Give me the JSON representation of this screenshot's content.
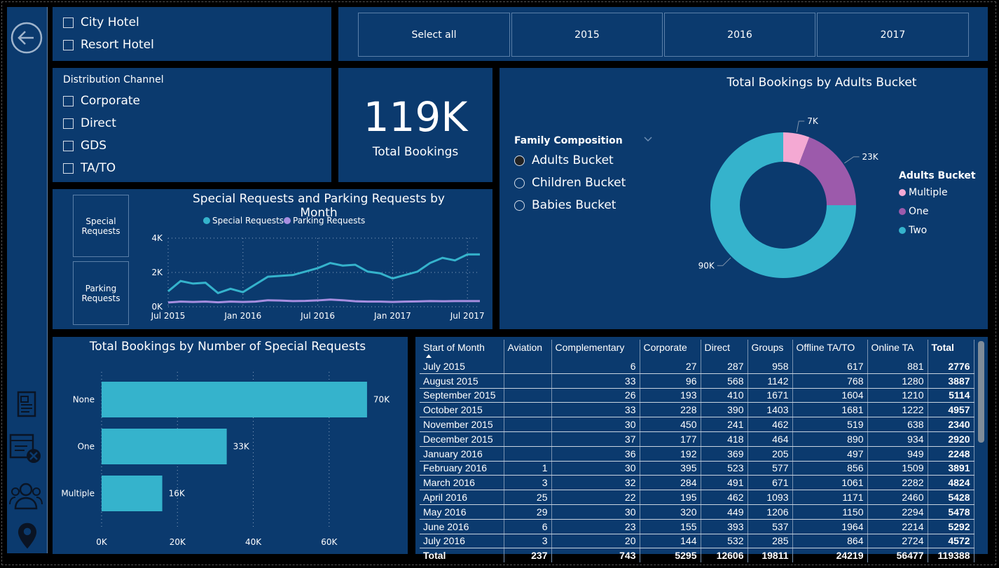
{
  "sidebar": {
    "icons": [
      "back-arrow-icon",
      "report-icon",
      "cancel-booking-icon",
      "customers-icon",
      "location-pin-icon"
    ]
  },
  "hotel_slicer": {
    "options": [
      "City Hotel",
      "Resort Hotel"
    ]
  },
  "year_slicer": {
    "options": [
      "Select all",
      "2015",
      "2016",
      "2017"
    ]
  },
  "channel_slicer": {
    "title": "Distribution Channel",
    "options": [
      "Corporate",
      "Direct",
      "GDS",
      "TA/TO"
    ]
  },
  "kpi": {
    "value": "119K",
    "label": "Total Bookings"
  },
  "family": {
    "title": "Family Composition",
    "options": [
      "Adults Bucket",
      "Children Bucket",
      "Babies Bucket"
    ],
    "selected": "Adults Bucket"
  },
  "line_buttons": [
    "Special Requests",
    "Parking Requests"
  ],
  "colors": {
    "teal": "#35b3cc",
    "purple": "#a78ee0",
    "pink": "#f4a9d3",
    "violet": "#9c5aab",
    "panel": "#0b3a6e"
  },
  "chart_data": [
    {
      "type": "line",
      "title": "Special Requests and Parking Requests by Month",
      "x": [
        "Jul 2015",
        "Aug 2015",
        "Sep 2015",
        "Oct 2015",
        "Nov 2015",
        "Dec 2015",
        "Jan 2016",
        "Feb 2016",
        "Mar 2016",
        "Apr 2016",
        "May 2016",
        "Jun 2016",
        "Jul 2016",
        "Aug 2016",
        "Sep 2016",
        "Oct 2016",
        "Nov 2016",
        "Dec 2016",
        "Jan 2017",
        "Feb 2017",
        "Mar 2017",
        "Apr 2017",
        "May 2017",
        "Jun 2017",
        "Jul 2017",
        "Aug 2017"
      ],
      "xticks": [
        "Jul 2015",
        "Jan 2016",
        "Jul 2016",
        "Jan 2017",
        "Jul 2017"
      ],
      "series": [
        {
          "name": "Special Requests",
          "color": "#35b3cc",
          "values": [
            900,
            1500,
            1350,
            1400,
            800,
            1050,
            850,
            1300,
            1750,
            1800,
            1850,
            2050,
            2250,
            2550,
            2400,
            2450,
            2050,
            1950,
            1650,
            1850,
            2050,
            2550,
            2850,
            2700,
            3050,
            3050
          ]
        },
        {
          "name": "Parking Requests",
          "color": "#a78ee0",
          "values": [
            250,
            300,
            280,
            300,
            260,
            300,
            280,
            300,
            380,
            360,
            330,
            340,
            370,
            420,
            380,
            320,
            300,
            300,
            280,
            300,
            310,
            330,
            320,
            330,
            330,
            330
          ]
        }
      ],
      "yticks": [
        "0K",
        "2K",
        "4K"
      ],
      "ylim": [
        0,
        4000
      ]
    },
    {
      "type": "pie",
      "title": "Total Bookings by Adults Bucket",
      "legend_title": "Adults Bucket",
      "slices": [
        {
          "label": "Multiple",
          "value": 7,
          "display": "7K",
          "color": "#f4a9d3"
        },
        {
          "label": "One",
          "value": 23,
          "display": "23K",
          "color": "#9c5aab"
        },
        {
          "label": "Two",
          "value": 90,
          "display": "90K",
          "color": "#35b3cc"
        }
      ]
    },
    {
      "type": "bar",
      "title": "Total Bookings by Number of Special Requests",
      "categories": [
        "None",
        "One",
        "Multiple"
      ],
      "values": [
        70,
        33,
        16
      ],
      "display": [
        "70K",
        "33K",
        "16K"
      ],
      "xticks": [
        "0K",
        "20K",
        "40K",
        "60K"
      ],
      "xlim": [
        0,
        75
      ]
    }
  ],
  "matrix": {
    "columns": [
      "Start of Month",
      "Aviation",
      "Complementary",
      "Corporate",
      "Direct",
      "Groups",
      "Offline TA/TO",
      "Online TA",
      "Total"
    ],
    "rows": [
      [
        "July 2015",
        "",
        "6",
        "27",
        "287",
        "958",
        "617",
        "881",
        "2776"
      ],
      [
        "August 2015",
        "",
        "33",
        "96",
        "568",
        "1142",
        "768",
        "1280",
        "3887"
      ],
      [
        "September 2015",
        "",
        "26",
        "193",
        "410",
        "1671",
        "1604",
        "1210",
        "5114"
      ],
      [
        "October 2015",
        "",
        "33",
        "228",
        "390",
        "1403",
        "1681",
        "1222",
        "4957"
      ],
      [
        "November 2015",
        "",
        "30",
        "450",
        "241",
        "462",
        "519",
        "638",
        "2340"
      ],
      [
        "December 2015",
        "",
        "37",
        "177",
        "418",
        "464",
        "890",
        "934",
        "2920"
      ],
      [
        "January 2016",
        "",
        "36",
        "192",
        "369",
        "205",
        "497",
        "949",
        "2248"
      ],
      [
        "February 2016",
        "1",
        "30",
        "395",
        "523",
        "577",
        "856",
        "1509",
        "3891"
      ],
      [
        "March 2016",
        "3",
        "32",
        "284",
        "491",
        "671",
        "1061",
        "2282",
        "4824"
      ],
      [
        "April 2016",
        "25",
        "22",
        "195",
        "462",
        "1093",
        "1171",
        "2460",
        "5428"
      ],
      [
        "May 2016",
        "29",
        "30",
        "320",
        "449",
        "1206",
        "1150",
        "2294",
        "5478"
      ],
      [
        "June 2016",
        "6",
        "23",
        "155",
        "393",
        "537",
        "1964",
        "2214",
        "5292"
      ],
      [
        "July 2016",
        "3",
        "20",
        "144",
        "532",
        "285",
        "864",
        "2724",
        "4572"
      ]
    ],
    "total": [
      "Total",
      "237",
      "743",
      "5295",
      "12606",
      "19811",
      "24219",
      "56477",
      "119388"
    ]
  }
}
